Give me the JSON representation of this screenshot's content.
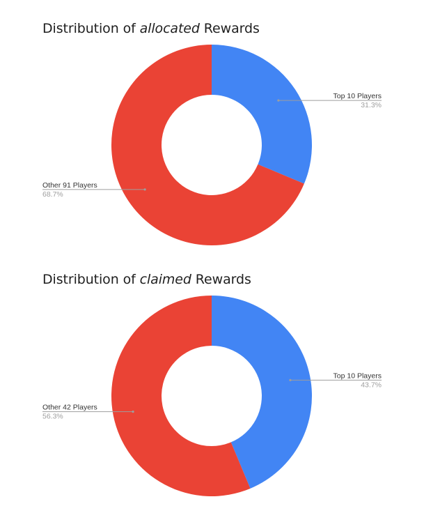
{
  "chart_data": [
    {
      "type": "pie",
      "title_parts": [
        "Distribution of ",
        "allocated",
        " Rewards"
      ],
      "categories": [
        "Top 10 Players",
        "Other 91 Players"
      ],
      "values": [
        31.3,
        68.7
      ],
      "value_labels": [
        "31.3%",
        "68.7%"
      ],
      "colors": [
        "#4285f4",
        "#ea4335"
      ]
    },
    {
      "type": "pie",
      "title_parts": [
        "Distribution of ",
        "claimed",
        " Rewards"
      ],
      "categories": [
        "Top 10 Players",
        "Other 42 Players"
      ],
      "values": [
        43.7,
        56.3
      ],
      "value_labels": [
        "43.7%",
        "56.3%"
      ],
      "colors": [
        "#4285f4",
        "#ea4335"
      ]
    }
  ]
}
